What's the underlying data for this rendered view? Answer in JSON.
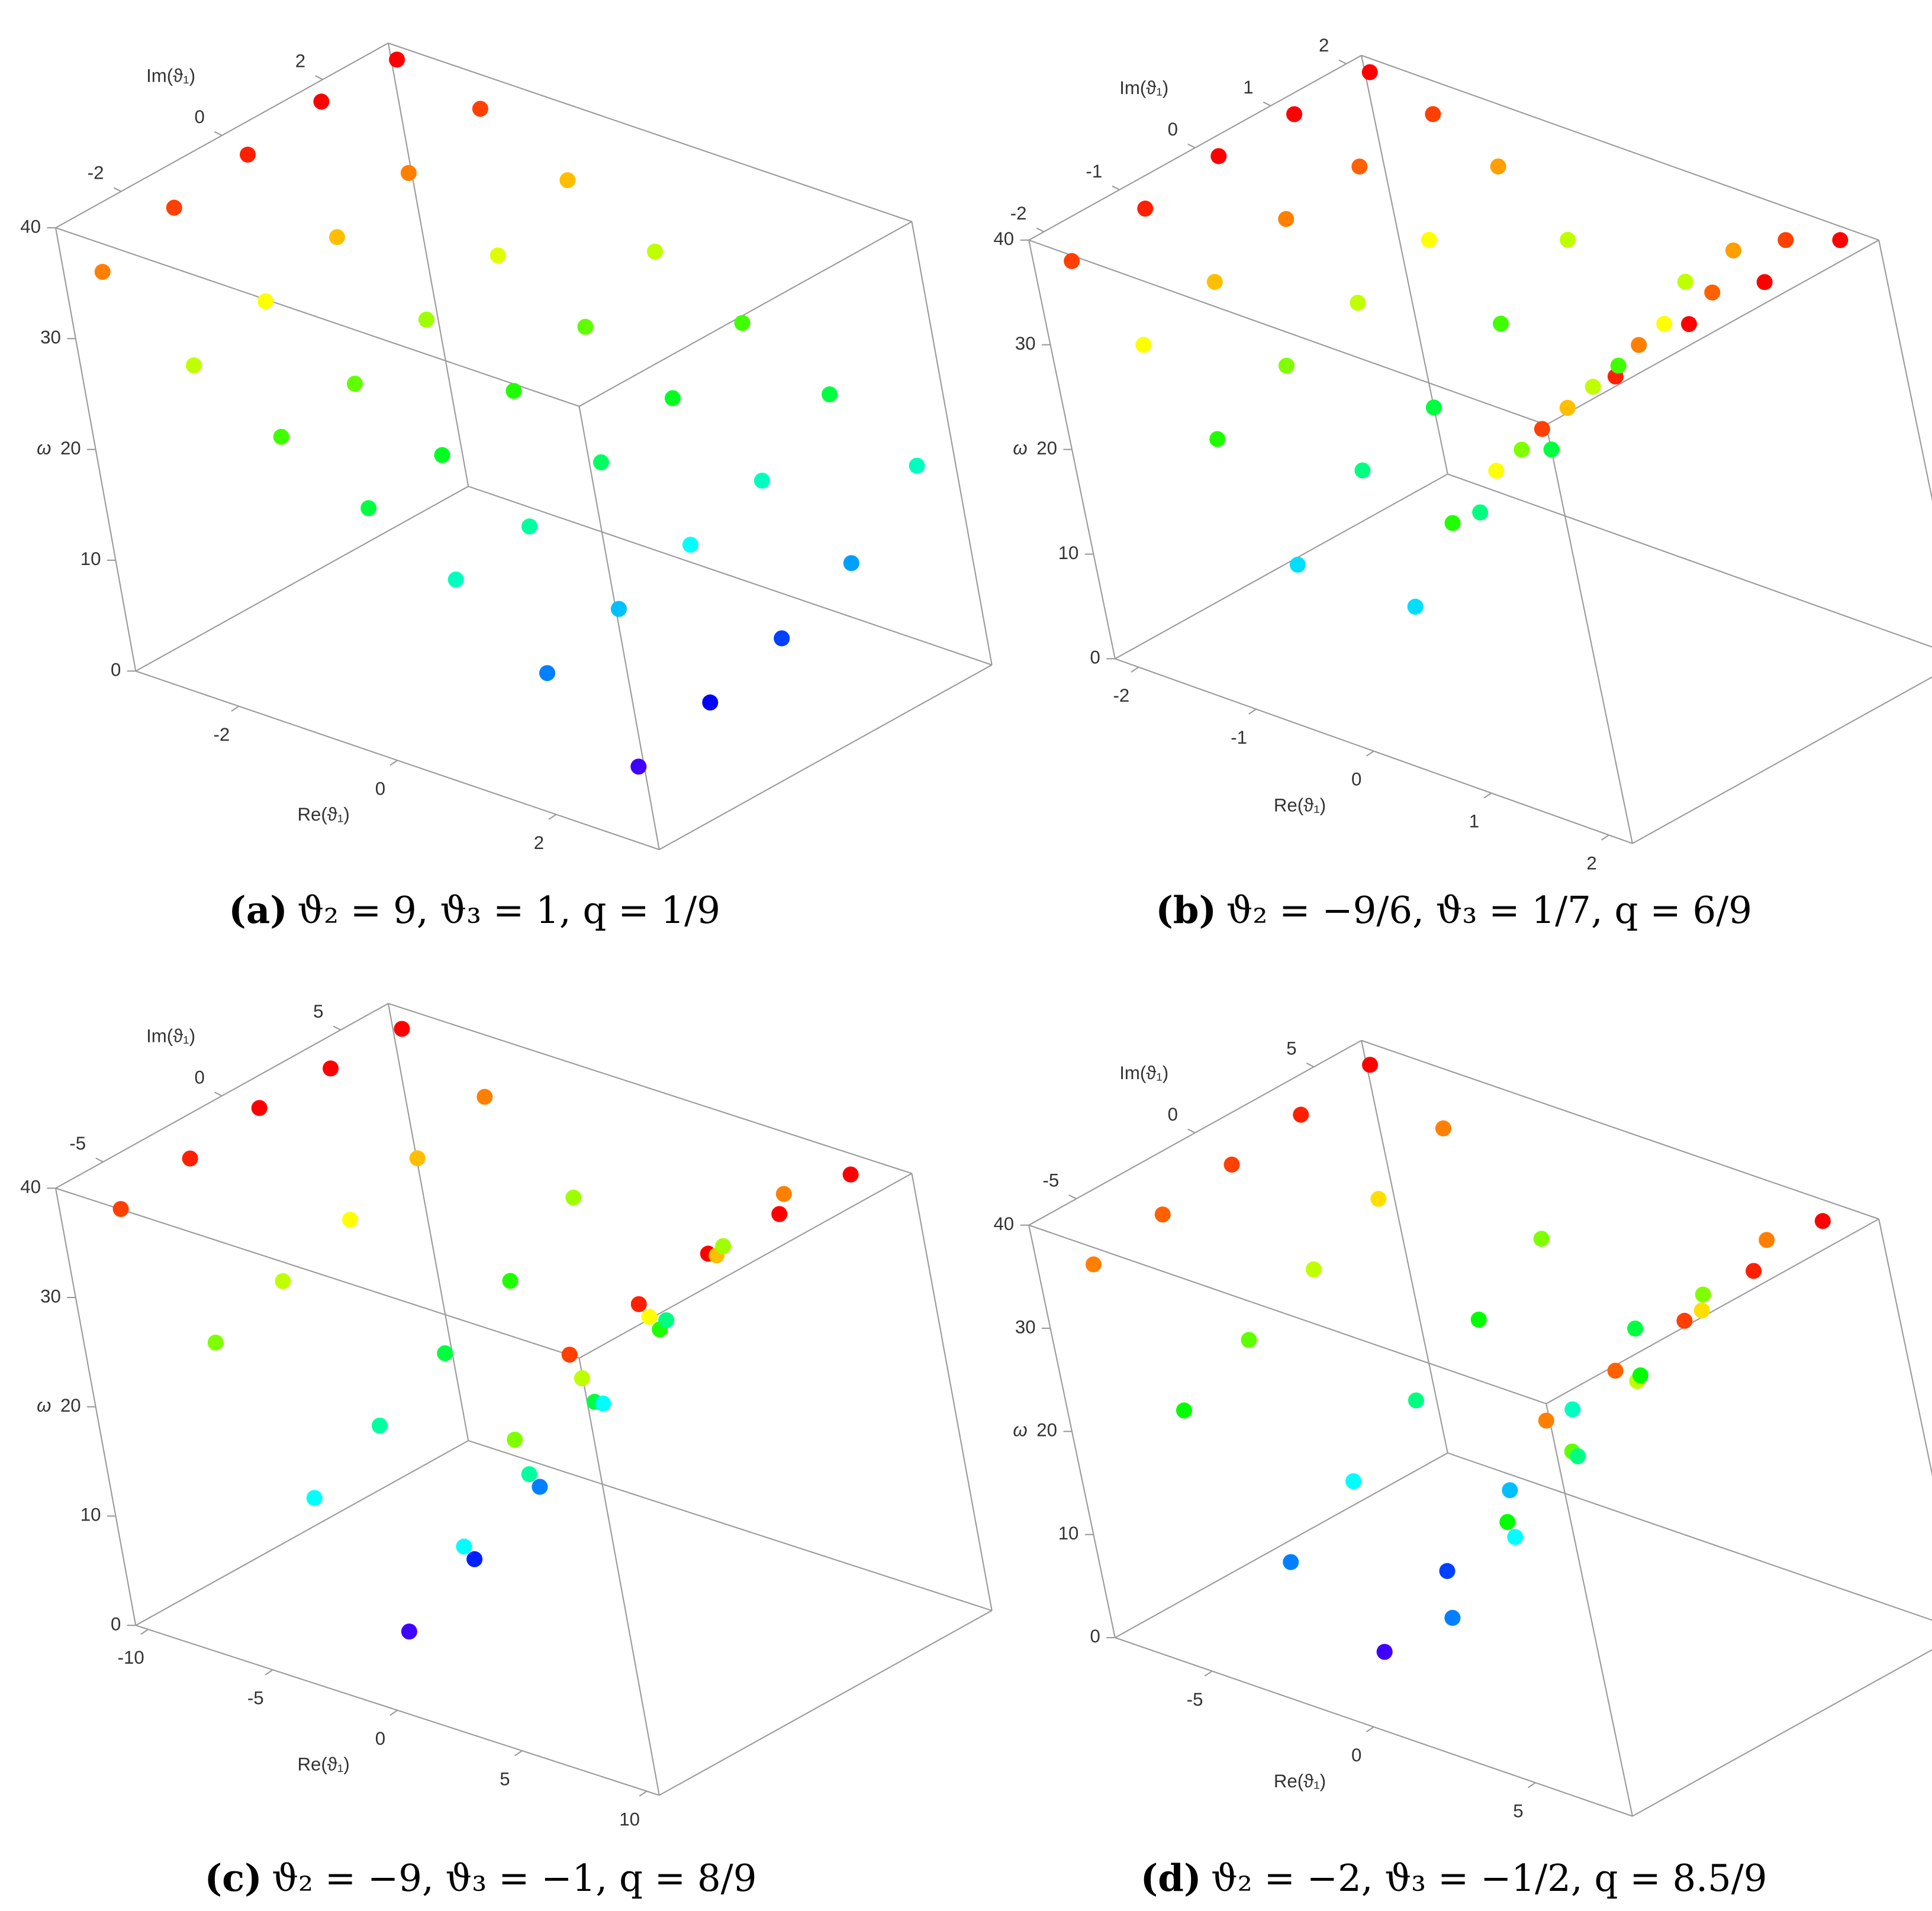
{
  "chart_data": [
    {
      "type": "scatter3d",
      "caption_label": "(a)",
      "caption": "ϑ₂ = 9, ϑ₃ = 1, q = 1/9",
      "xlabel": "Re(ϑ₁)",
      "ylabel": "Im(ϑ₁)",
      "zlabel": "ω",
      "xlim": [
        -3.3,
        3.3
      ],
      "xticks": [
        -2,
        0,
        2
      ],
      "ylim": [
        -3.3,
        3.3
      ],
      "yticks": [
        -2,
        0,
        2
      ],
      "zlim": [
        0,
        40
      ],
      "zticks": [
        0,
        10,
        20,
        30,
        40
      ],
      "colormap": "hue",
      "series": [
        {
          "x": [
            -3,
            -2,
            -1,
            0,
            1,
            2,
            3
          ],
          "y": [
            -3,
            -3,
            -3,
            -3,
            -3,
            -3,
            -3
          ],
          "z": [
            36,
            30,
            26,
            22,
            18,
            12,
            6
          ]
        },
        {
          "x": [
            -3,
            -2,
            -1,
            0,
            1,
            2,
            3
          ],
          "y": [
            -1.5,
            -1.5,
            -1.5,
            -1.5,
            -1.5,
            -1.5,
            -1.5
          ],
          "z": [
            38,
            32,
            27,
            23,
            19,
            14,
            8
          ]
        },
        {
          "x": [
            -3,
            -2,
            -1,
            0,
            1,
            2,
            3
          ],
          "y": [
            0,
            0,
            0,
            0,
            0,
            0,
            0
          ],
          "z": [
            39,
            34,
            29,
            25,
            21,
            16,
            10
          ]
        },
        {
          "x": [
            -3,
            -2,
            -1,
            0,
            1,
            2,
            3
          ],
          "y": [
            1.5,
            1.5,
            1.5,
            1.5,
            1.5,
            1.5,
            1.5
          ],
          "z": [
            40,
            36,
            31,
            27,
            23,
            18,
            13
          ]
        },
        {
          "x": [
            -3,
            -2,
            -1,
            0,
            1,
            2,
            3
          ],
          "y": [
            3,
            3,
            3,
            3,
            3,
            3,
            3
          ],
          "z": [
            40,
            38,
            34,
            30,
            26,
            22,
            18
          ]
        }
      ]
    },
    {
      "type": "scatter3d",
      "caption_label": "(b)",
      "caption": "ϑ₂ = −9/6, ϑ₃ = 1/7, q = 6/9",
      "xlabel": "Re(ϑ₁)",
      "ylabel": "Im(ϑ₁)",
      "zlabel": "ω",
      "xlim": [
        -2.2,
        2.2
      ],
      "xticks": [
        -2,
        -1,
        0,
        1,
        2
      ],
      "ylim": [
        -2.2,
        2.2
      ],
      "yticks": [
        -2,
        -1,
        0,
        1,
        2
      ],
      "zlim": [
        0,
        40
      ],
      "zticks": [
        0,
        10,
        20,
        30,
        40
      ],
      "colormap": "hue",
      "series": [
        {
          "x": [
            -2,
            -1.5,
            -1,
            -0.5,
            0.5,
            1,
            1.5,
            2
          ],
          "y": [
            -2,
            -2,
            -2,
            -2,
            -2,
            -2,
            -2,
            -2
          ],
          "z": [
            38,
            32,
            25,
            15,
            15,
            25,
            32,
            38
          ]
        },
        {
          "x": [
            -2,
            -1.5,
            -1,
            -0.5,
            0.5,
            1,
            1.5,
            2
          ],
          "y": [
            -1,
            -1,
            -1,
            -1,
            -1,
            -1,
            -1,
            -1
          ],
          "z": [
            39,
            34,
            28,
            20,
            20,
            28,
            34,
            39
          ]
        },
        {
          "x": [
            -2,
            -1.5,
            -1,
            -0.5,
            0.5,
            1,
            1.5,
            2
          ],
          "y": [
            0,
            0,
            0,
            0,
            0,
            0,
            0,
            0
          ],
          "z": [
            40,
            36,
            30,
            22,
            22,
            30,
            36,
            40
          ]
        },
        {
          "x": [
            -2,
            -1.5,
            -1,
            -0.5,
            0.5,
            1,
            1.5,
            2
          ],
          "y": [
            1,
            1,
            1,
            1,
            1,
            1,
            1,
            1
          ],
          "z": [
            40,
            37,
            32,
            26,
            26,
            32,
            37,
            40
          ]
        },
        {
          "x": [
            -2,
            -1.5,
            -1,
            -0.5,
            0.5,
            1,
            1.5,
            2
          ],
          "y": [
            2,
            2,
            2,
            2,
            2,
            2,
            2,
            2
          ],
          "z": [
            40,
            38,
            35,
            30,
            30,
            35,
            38,
            40
          ]
        }
      ]
    },
    {
      "type": "scatter3d",
      "caption_label": "(c)",
      "caption": "ϑ₂ = −9, ϑ₃ = −1, q = 8/9",
      "xlabel": "Re(ϑ₁)",
      "ylabel": "Im(ϑ₁)",
      "zlabel": "ω",
      "xlim": [
        -10.5,
        10.5
      ],
      "xticks": [
        -10,
        -5,
        0,
        5,
        10
      ],
      "ylim": [
        -7,
        7
      ],
      "yticks": [
        -5,
        0,
        5
      ],
      "zlim": [
        0,
        40
      ],
      "zticks": [
        0,
        10,
        20,
        30,
        40
      ],
      "colormap": "hue",
      "series": [
        {
          "x": [
            -9,
            -6,
            -3,
            0,
            3,
            6,
            9
          ],
          "y": [
            -6,
            -6,
            -6,
            -6,
            -6,
            -6,
            -6
          ],
          "z": [
            38,
            28,
            16,
            6,
            16,
            28,
            38
          ]
        },
        {
          "x": [
            -9,
            -6,
            -3,
            0,
            3,
            6,
            9
          ],
          "y": [
            -3,
            -3,
            -3,
            -3,
            -3,
            -3,
            -3
          ],
          "z": [
            39,
            30,
            19,
            9,
            19,
            30,
            39
          ]
        },
        {
          "x": [
            -9,
            -6,
            -3,
            0,
            3,
            6,
            9
          ],
          "y": [
            0,
            0,
            0,
            0,
            0,
            0,
            0
          ],
          "z": [
            40,
            32,
            22,
            12,
            22,
            32,
            40
          ]
        },
        {
          "x": [
            -9,
            -6,
            -3,
            0,
            3,
            6,
            9
          ],
          "y": [
            3,
            3,
            3,
            3,
            3,
            3,
            3
          ],
          "z": [
            40,
            34,
            25,
            16,
            25,
            34,
            40
          ]
        },
        {
          "x": [
            -9,
            -6,
            -3,
            0,
            3,
            6,
            9
          ],
          "y": [
            6,
            6,
            6,
            6,
            6,
            6,
            6
          ],
          "z": [
            40,
            36,
            29,
            20,
            29,
            36,
            40
          ]
        }
      ]
    },
    {
      "type": "scatter3d",
      "caption_label": "(d)",
      "caption": "ϑ₂ = −2, ϑ₃ = −1/2, q = 8.5/9",
      "xlabel": "Re(ϑ₁)",
      "ylabel": "Im(ϑ₁)",
      "zlabel": "ω",
      "xlim": [
        -8,
        8
      ],
      "xticks": [
        -5,
        0,
        5
      ],
      "ylim": [
        -7,
        7
      ],
      "yticks": [
        -5,
        0,
        5
      ],
      "zlim": [
        0,
        40
      ],
      "zticks": [
        0,
        10,
        20,
        30,
        40
      ],
      "colormap": "hue",
      "series": [
        {
          "x": [
            -7,
            -5,
            -2.5,
            0,
            2.5,
            5,
            7
          ],
          "y": [
            -6,
            -6,
            -6,
            -6,
            -6,
            -6,
            -6
          ],
          "z": [
            36,
            24,
            12,
            6,
            12,
            24,
            36
          ]
        },
        {
          "x": [
            -7,
            -5,
            -2.5,
            0,
            2.5,
            5,
            7
          ],
          "y": [
            -3,
            -3,
            -3,
            -3,
            -3,
            -3,
            -3
          ],
          "z": [
            37,
            27,
            16,
            10,
            16,
            27,
            37
          ]
        },
        {
          "x": [
            -7,
            -5,
            -2.5,
            0,
            2.5,
            5,
            7
          ],
          "y": [
            0,
            0,
            0,
            0,
            0,
            0,
            0
          ],
          "z": [
            38,
            30,
            20,
            14,
            20,
            30,
            38
          ]
        },
        {
          "x": [
            -7,
            -5,
            -2.5,
            0,
            2.5,
            5,
            7
          ],
          "y": [
            3,
            3,
            3,
            3,
            3,
            3,
            3
          ],
          "z": [
            39,
            33,
            24,
            18,
            24,
            33,
            39
          ]
        },
        {
          "x": [
            -7,
            -5,
            -2.5,
            0,
            2.5,
            5,
            7
          ],
          "y": [
            6,
            6,
            6,
            6,
            6,
            6,
            6
          ],
          "z": [
            40,
            36,
            28,
            22,
            28,
            36,
            40
          ]
        }
      ]
    }
  ]
}
